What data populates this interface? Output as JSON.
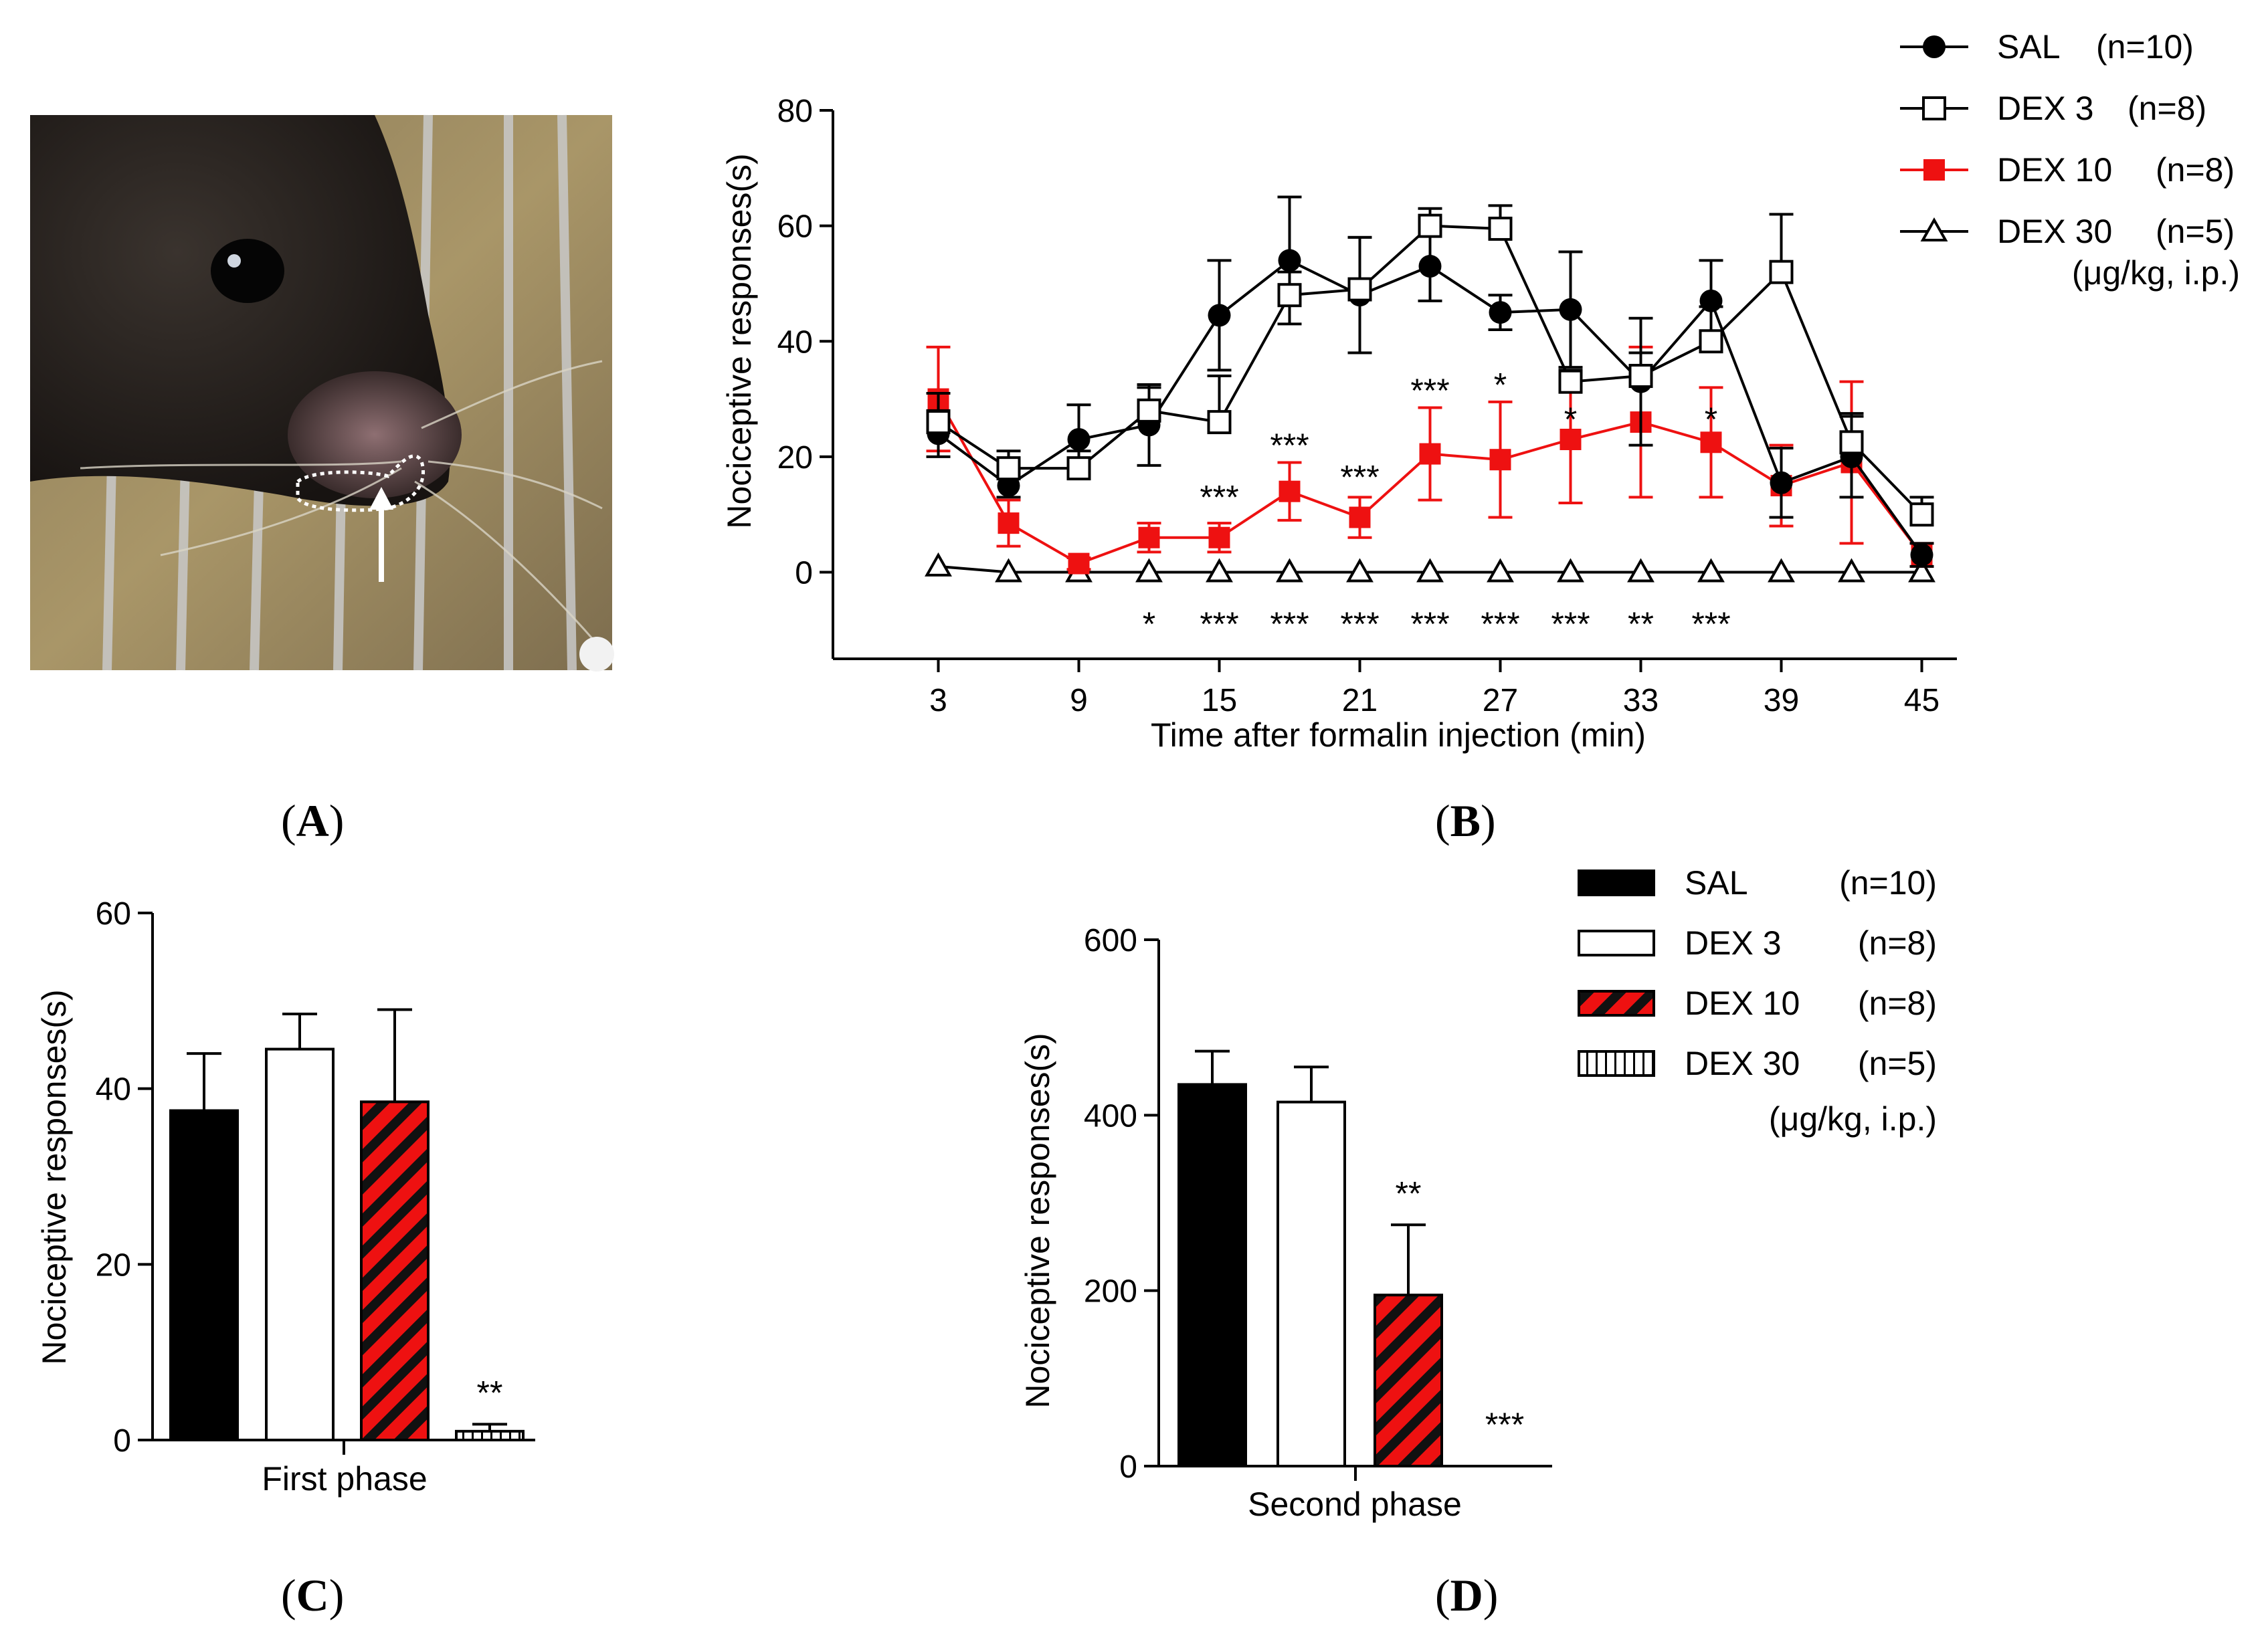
{
  "panels": {
    "a": "A",
    "b": "B",
    "c": "C",
    "d": "D"
  },
  "photo": {
    "icon": "mouse-photo-with-arrow"
  },
  "colors": {
    "sal": "#000000",
    "dex3": "#ffffff",
    "dex10": "#ee1111",
    "dex30": "#ffffff",
    "axis": "#000000"
  },
  "chart_data": [
    {
      "id": "B",
      "type": "line",
      "title": "",
      "xlabel": "Time after formalin injection (min)",
      "ylabel": "Nociceptive responses(s)",
      "x": [
        3,
        6,
        9,
        12,
        15,
        18,
        21,
        24,
        27,
        30,
        33,
        36,
        39,
        42,
        45
      ],
      "xticks": [
        "3",
        "9",
        "15",
        "21",
        "27",
        "33",
        "39",
        "45"
      ],
      "xtick_values": [
        3,
        9,
        15,
        21,
        27,
        33,
        39,
        45
      ],
      "yticks": [
        "0",
        "20",
        "40",
        "60",
        "80"
      ],
      "ytick_values": [
        0,
        20,
        40,
        60,
        80
      ],
      "ylim": [
        -15,
        80
      ],
      "xlim": [
        -1.5,
        46.5
      ],
      "series": [
        {
          "key": "sal",
          "name": "SAL",
          "n": "(n=10)",
          "marker": "circle",
          "values": [
            24,
            15,
            23,
            25.5,
            44.5,
            54,
            48,
            53,
            45,
            45.5,
            33,
            47,
            15.5,
            20,
            3
          ],
          "errors": [
            4,
            2,
            6,
            7,
            9.5,
            11,
            10,
            6,
            3,
            10,
            11,
            7,
            6,
            7,
            2
          ]
        },
        {
          "key": "dex3",
          "name": "DEX 3",
          "n": "(n=8)",
          "marker": "square-open",
          "values": [
            26,
            18,
            18,
            28,
            26,
            48,
            49,
            60,
            59.5,
            33,
            34,
            40,
            52,
            22.5,
            10
          ],
          "errors": [
            5,
            3,
            3,
            4,
            8,
            4,
            9,
            3,
            4,
            2,
            4,
            6,
            10,
            5,
            3
          ]
        },
        {
          "key": "dex10",
          "name": "DEX 10",
          "n": "(n=8)",
          "marker": "square-filled",
          "values": [
            30,
            8.5,
            1.5,
            6,
            6,
            14,
            9.5,
            20.5,
            19.5,
            23,
            26,
            22.5,
            15,
            19,
            3
          ],
          "errors": [
            9,
            4,
            1,
            2.5,
            2.5,
            5,
            3.5,
            8,
            10,
            11,
            13,
            9.5,
            7,
            14,
            2
          ]
        },
        {
          "key": "dex30",
          "name": "DEX 30",
          "n": "(n=5)",
          "marker": "triangle-open",
          "values": [
            1,
            0,
            0,
            0,
            0,
            0,
            0,
            0,
            0,
            0,
            0,
            0,
            0,
            0,
            0
          ],
          "errors": [
            0,
            0,
            0,
            0,
            0,
            0,
            0,
            0,
            0,
            0,
            0,
            0,
            0,
            0,
            0
          ]
        }
      ],
      "annotations_upper": [
        {
          "x": 15,
          "y": 11,
          "text": "***"
        },
        {
          "x": 18,
          "y": 20,
          "text": "***"
        },
        {
          "x": 21,
          "y": 14.5,
          "text": "***"
        },
        {
          "x": 24,
          "y": 29.5,
          "text": "***"
        },
        {
          "x": 27,
          "y": 30.5,
          "text": "*"
        },
        {
          "x": 30,
          "y": 24.5,
          "text": "*"
        },
        {
          "x": 36,
          "y": 24.5,
          "text": "*"
        }
      ],
      "annotations_lower": [
        {
          "x": 12,
          "text": "*"
        },
        {
          "x": 15,
          "text": "***"
        },
        {
          "x": 18,
          "text": "***"
        },
        {
          "x": 21,
          "text": "***"
        },
        {
          "x": 24,
          "text": "***"
        },
        {
          "x": 27,
          "text": "***"
        },
        {
          "x": 30,
          "text": "***"
        },
        {
          "x": 33,
          "text": "**"
        },
        {
          "x": 36,
          "text": "***"
        }
      ],
      "legend_placement": "top-right",
      "legend_note": "(μg/kg, i.p.)"
    },
    {
      "id": "C",
      "type": "bar",
      "title": "",
      "xlabel": "First phase",
      "ylabel": "Nociceptive responses(s)",
      "categories": [
        "SAL",
        "DEX 3",
        "DEX 10",
        "DEX 30"
      ],
      "values": [
        37.5,
        44.5,
        38.5,
        1
      ],
      "errors": [
        6.5,
        4,
        10.5,
        0.8
      ],
      "fills": [
        "solid-black",
        "white",
        "red-hatch",
        "vertical-stripe"
      ],
      "annotations": [
        "",
        "",
        "",
        "**"
      ],
      "yticks": [
        "0",
        "20",
        "40",
        "60"
      ],
      "ytick_values": [
        0,
        20,
        40,
        60
      ],
      "ylim": [
        0,
        60
      ]
    },
    {
      "id": "D",
      "type": "bar",
      "title": "",
      "xlabel": "Second phase",
      "ylabel": "Nociceptive responses(s)",
      "categories": [
        "SAL",
        "DEX 3",
        "DEX 10",
        "DEX 30"
      ],
      "values": [
        435,
        415,
        195,
        0
      ],
      "errors": [
        38,
        40,
        80,
        0
      ],
      "fills": [
        "solid-black",
        "white",
        "red-hatch",
        "vertical-stripe"
      ],
      "annotations": [
        "",
        "",
        "**",
        "***"
      ],
      "yticks": [
        "0",
        "200",
        "400",
        "600"
      ],
      "ytick_values": [
        0,
        200,
        400,
        600
      ],
      "ylim": [
        0,
        600
      ],
      "legend": [
        {
          "name": "SAL",
          "n": "(n=10)",
          "fill": "solid-black"
        },
        {
          "name": "DEX 3",
          "n": "(n=8)",
          "fill": "white"
        },
        {
          "name": "DEX 10",
          "n": "(n=8)",
          "fill": "red-hatch"
        },
        {
          "name": "DEX 30",
          "n": "(n=5)",
          "fill": "vertical-stripe"
        }
      ],
      "legend_note": "(μg/kg, i.p.)"
    }
  ]
}
